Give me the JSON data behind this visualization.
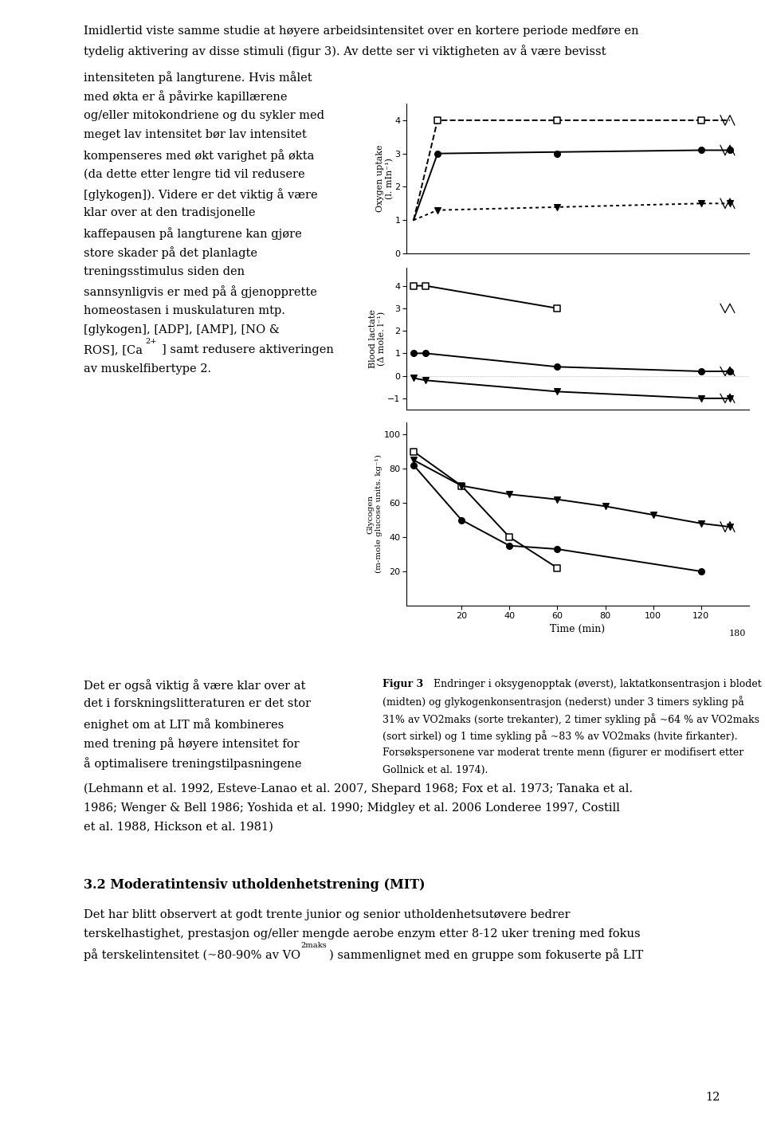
{
  "page_width": 9.6,
  "page_height": 14.08,
  "dpi": 100,
  "body_fontsize": 10.5,
  "small_fontsize": 9.2,
  "caption_fontsize": 9.0,
  "bold_fontsize": 11.5,
  "full_lines": [
    "Imidlertid viste samme studie at høyere arbeidsintensitet over en kortere periode medføre en",
    "tydelig aktivering av disse stimuli (figur 3). Av dette ser vi viktigheten av å være bevisst"
  ],
  "split_first": "intensiteten på langturene. Hvis målet",
  "left_col_lines": [
    "med økta er å påvirke kapillærene",
    "og/eller mitokondriene og du sykler med",
    "meget lav intensitet bør lav intensitet",
    "kompenseres med økt varighet på økta",
    "(da dette etter lengre tid vil redusere",
    "[glykogen]). Videre er det viktig å være",
    "klar over at den tradisjonelle",
    "kaffepausen på langturene kan gjøre",
    "store skader på det planlagte",
    "treningsstimulus siden den",
    "sannsynligvis er med på å gjenopprette",
    "homeostasen i muskulaturen mtp.",
    "[glykogen], [ADP], [AMP], [NO &",
    "ROS], [Ca^{2+}] samt redusere aktiveringen",
    "av muskelfibertype 2."
  ],
  "bottom_left_lines": [
    "Det er også viktig å være klar over at",
    "det i forskningslitteraturen er det stor",
    "enighet om at LIT må kombineres",
    "med trening på høyere intensitet for",
    "å optimalisere treningstilpasningene"
  ],
  "refs": [
    "(Lehmann et al. 1992, Esteve-Lanao et al. 2007, Shepard 1968; Fox et al. 1973; Tanaka et al.",
    "1986; Wenger & Bell 1986; Yoshida et al. 1990; Midgley et al. 2006 Londeree 1997, Costill",
    "et al. 1988, Hickson et al. 1981)"
  ],
  "section_head": "3.2 Moderatintensiv utholdenhetstrening (MIT)",
  "section_body": [
    "Det har blitt observert at godt trente junior og senior utholdenhetsutøvere bedrer",
    "terskelhastighet, prestasjon og/eller mengde aerobe enzym etter 8-12 uker trening med fokus"
  ],
  "section_last_a": "på terskelintensitet (~80-90% av VO",
  "section_last_b": "2maks",
  "section_last_c": ") sammenlignet med en gruppe som fokuserte på LIT",
  "page_num": "12",
  "caption_bold": "Figur 3",
  "caption_lines": [
    " Endringer i oksygenopptak (øverst), laktatkonsentrasjon i blodet",
    "(midten) og glykogenkonsentrasjon (nederst) under 3 timers sykling på",
    "31% av VO2maks (sorte trekanter), 2 timer sykling på ~64 % av VO2maks",
    "(sort sirkel) og 1 time sykling på ~83 % av VO2maks (hvite firkanter).",
    "Forsøkspersonene var moderat trente menn (figurer er modifisert etter",
    "Gollnick et al. 1974)."
  ]
}
